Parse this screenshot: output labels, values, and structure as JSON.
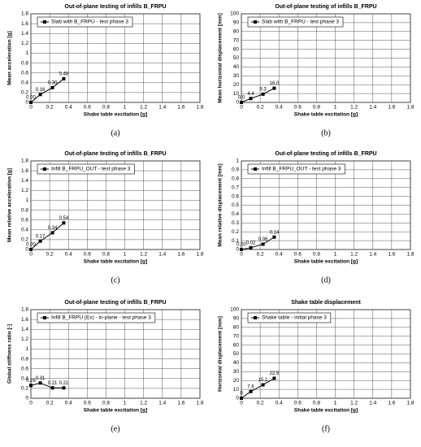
{
  "chart_data": [
    {
      "type": "line",
      "title": "Out-of-plane testing of infills B_FRPU",
      "caption": "(a)",
      "x_label": "Shake table excitation [g]",
      "y_label": "Mean acceleration [g]",
      "x": [
        0,
        0.1,
        0.23,
        0.35
      ],
      "series": [
        {
          "name": "Slab with B_FRPU - test phase 3",
          "color": "#000000",
          "values": [
            0,
            0.16,
            0.3,
            0.48
          ],
          "value_labels": [
            "0.00",
            "0.16",
            "0.30",
            "0.48"
          ]
        }
      ],
      "xlim": [
        0,
        1.8
      ],
      "xticks": [
        0,
        0.2,
        0.4,
        0.6,
        0.8,
        1,
        1.2,
        1.4,
        1.6,
        1.8
      ],
      "ylim": [
        0,
        1.8
      ],
      "yticks": [
        0,
        0.2,
        0.4,
        0.6,
        0.8,
        1,
        1.2,
        1.4,
        1.6,
        1.8
      ],
      "grid": true
    },
    {
      "type": "line",
      "title": "Out-of-plane testing of infills B_FRPU",
      "caption": "(b)",
      "x_label": "Shake table excitation [g]",
      "y_label": "Mean horizontal displacement [mm]",
      "x": [
        0,
        0.1,
        0.23,
        0.35
      ],
      "series": [
        {
          "name": "Slab with B_FRPU - test phase 3",
          "color": "#000000",
          "values": [
            0,
            4.4,
            9.3,
            16
          ],
          "value_labels": [
            "0.0",
            "4.4",
            "9.3",
            "16.0"
          ]
        }
      ],
      "xlim": [
        0,
        1.8
      ],
      "xticks": [
        0,
        0.2,
        0.4,
        0.6,
        0.8,
        1,
        1.2,
        1.4,
        1.6,
        1.8
      ],
      "ylim": [
        0,
        100
      ],
      "yticks": [
        0,
        10,
        20,
        30,
        40,
        50,
        60,
        70,
        80,
        90,
        100
      ],
      "grid": true
    },
    {
      "type": "line",
      "title": "Out-of-plane testing of infills B_FRPU",
      "caption": "(c)",
      "x_label": "Shake table excitation [g]",
      "y_label": "Mean relative acceleration [g]",
      "x": [
        0,
        0.1,
        0.23,
        0.35
      ],
      "series": [
        {
          "name": "Infill B_FRPU_OUT - test phase 3",
          "color": "#000000",
          "values": [
            0,
            0.17,
            0.34,
            0.54
          ],
          "value_labels": [
            "0.00",
            "0.17",
            "0.34",
            "0.54"
          ]
        }
      ],
      "xlim": [
        0,
        1.8
      ],
      "xticks": [
        0,
        0.2,
        0.4,
        0.6,
        0.8,
        1,
        1.2,
        1.4,
        1.6,
        1.8
      ],
      "ylim": [
        0,
        1.8
      ],
      "yticks": [
        0,
        0.2,
        0.4,
        0.6,
        0.8,
        1,
        1.2,
        1.4,
        1.6,
        1.8
      ],
      "grid": true
    },
    {
      "type": "line",
      "title": "Out-of-plane testing of infills B_FRPU",
      "caption": "(d)",
      "x_label": "Shake table excitation [g]",
      "y_label": "Mean relative displacement [mm]",
      "x": [
        0,
        0.1,
        0.23,
        0.35
      ],
      "series": [
        {
          "name": "Infill B_FRPU_OUT - test phase 3",
          "color": "#000000",
          "values": [
            0,
            0.02,
            0.06,
            0.14
          ],
          "value_labels": [
            "0.00",
            "0.02",
            "0.06",
            "0.14"
          ]
        }
      ],
      "xlim": [
        0,
        1.8
      ],
      "xticks": [
        0,
        0.2,
        0.4,
        0.6,
        0.8,
        1,
        1.2,
        1.4,
        1.6,
        1.8
      ],
      "ylim": [
        0,
        1
      ],
      "yticks": [
        0,
        0.1,
        0.2,
        0.3,
        0.4,
        0.5,
        0.6,
        0.7,
        0.8,
        0.9,
        1
      ],
      "grid": true
    },
    {
      "type": "line",
      "title": "Out-of-plane testing of infills B_FRPU",
      "caption": "(e)",
      "x_label": "Shake table excitation [g]",
      "y_label": "Global stiffness ratio [-]",
      "x": [
        0,
        0.1,
        0.23,
        0.35
      ],
      "series": [
        {
          "name": "Infill B_FRPU (Ex) - in-plane - test phase 3",
          "color": "#000000",
          "values": [
            0.26,
            0.31,
            0.21,
            0.21
          ]
        }
      ],
      "xlim": [
        0,
        1.8
      ],
      "xticks": [
        0,
        0.2,
        0.4,
        0.6,
        0.8,
        1,
        1.2,
        1.4,
        1.6,
        1.8
      ],
      "ylim": [
        0,
        1.8
      ],
      "yticks": [
        0,
        0.2,
        0.4,
        0.6,
        0.8,
        1,
        1.2,
        1.4,
        1.6,
        1.8
      ],
      "grid": true
    },
    {
      "type": "line",
      "title": "Shake table displacement",
      "caption": "(f)",
      "x_label": "Shake table excitation [g]",
      "y_label": "Horizontal displacement [mm]",
      "x": [
        0,
        0.1,
        0.23,
        0.35
      ],
      "series": [
        {
          "name": "Shake table - initial phase 3",
          "color": "#000000",
          "values": [
            0,
            7.6,
            15.1,
            22.5
          ]
        }
      ],
      "xlim": [
        0,
        1.8
      ],
      "xticks": [
        0,
        0.2,
        0.4,
        0.6,
        0.8,
        1,
        1.2,
        1.4,
        1.6,
        1.8
      ],
      "ylim": [
        0,
        100
      ],
      "yticks": [
        0,
        10,
        20,
        30,
        40,
        50,
        60,
        70,
        80,
        90,
        100
      ],
      "grid": true
    }
  ]
}
